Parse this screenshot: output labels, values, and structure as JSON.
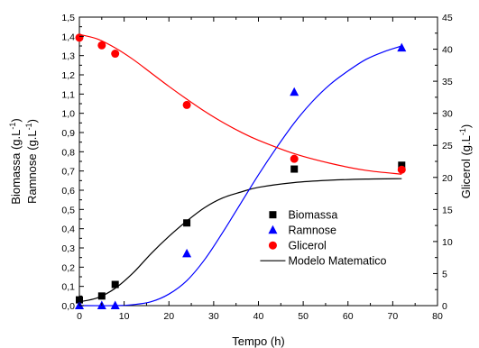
{
  "chart_data": {
    "type": "scatter",
    "xlabel": "Tempo (h)",
    "ylabel_left_line1": "Biomassa (g.L",
    "ylabel_left_line2": "Ramnose (g.L",
    "ylabel_left_sup": "-1",
    "ylabel_left_close": ")",
    "ylabel_right": "Glicerol (g.L",
    "ylabel_right_sup": "-1",
    "ylabel_right_close": ")",
    "xlim": [
      0,
      80
    ],
    "ylim_left": [
      0,
      1.5
    ],
    "ylim_right": [
      0,
      45
    ],
    "x_ticks": [
      "0",
      "10",
      "20",
      "30",
      "40",
      "50",
      "60",
      "70",
      "80"
    ],
    "y_left_ticks": [
      "0,0",
      "0,1",
      "0,2",
      "0,3",
      "0,4",
      "0,5",
      "0,6",
      "0,7",
      "0,8",
      "0,9",
      "1,0",
      "1,1",
      "1,2",
      "1,3",
      "1,4",
      "1,5"
    ],
    "y_right_ticks": [
      "0",
      "5",
      "10",
      "15",
      "20",
      "25",
      "30",
      "35",
      "40",
      "45"
    ],
    "grid": false,
    "legend_position": "bottom-right",
    "series": [
      {
        "name": "Biomassa",
        "marker": "square",
        "color": "#000000",
        "axis": "left",
        "x": [
          0,
          5,
          8,
          24,
          48,
          72
        ],
        "y": [
          0.03,
          0.05,
          0.11,
          0.43,
          0.71,
          0.73
        ]
      },
      {
        "name": "Ramnose",
        "marker": "triangle",
        "color": "#0000ff",
        "axis": "left",
        "x": [
          0,
          5,
          8,
          24,
          48,
          72
        ],
        "y": [
          0.0,
          0.0,
          0.0,
          0.27,
          1.11,
          1.34
        ]
      },
      {
        "name": "Glicerol",
        "marker": "circle",
        "color": "#ff0000",
        "axis": "right",
        "x": [
          0,
          5,
          8,
          24,
          48,
          72
        ],
        "y": [
          41.8,
          40.6,
          39.3,
          31.3,
          22.9,
          21.2
        ]
      }
    ],
    "model": {
      "name": "Modelo Matematico",
      "curves": [
        {
          "color": "#000000",
          "axis": "left",
          "x": [
            0,
            4,
            8,
            12,
            16,
            20,
            24,
            28,
            32,
            36,
            40,
            48,
            56,
            64,
            72
          ],
          "y": [
            0.02,
            0.04,
            0.09,
            0.17,
            0.27,
            0.36,
            0.44,
            0.51,
            0.56,
            0.59,
            0.615,
            0.64,
            0.652,
            0.658,
            0.66
          ]
        },
        {
          "color": "#0000ff",
          "axis": "left",
          "x": [
            0,
            8,
            12,
            16,
            20,
            24,
            28,
            32,
            36,
            40,
            44,
            48,
            52,
            56,
            60,
            64,
            68,
            72
          ],
          "y": [
            0.0,
            0.0,
            0.005,
            0.02,
            0.06,
            0.13,
            0.24,
            0.38,
            0.53,
            0.68,
            0.82,
            0.95,
            1.06,
            1.15,
            1.22,
            1.28,
            1.32,
            1.35
          ]
        },
        {
          "color": "#ff0000",
          "axis": "right",
          "x": [
            0,
            4,
            8,
            12,
            16,
            20,
            24,
            28,
            32,
            36,
            40,
            48,
            56,
            64,
            72
          ],
          "y": [
            42.3,
            41.6,
            40.2,
            38.4,
            36.3,
            34.2,
            32.2,
            30.3,
            28.6,
            27.1,
            25.8,
            23.7,
            22.2,
            21.1,
            20.5
          ]
        }
      ]
    }
  }
}
